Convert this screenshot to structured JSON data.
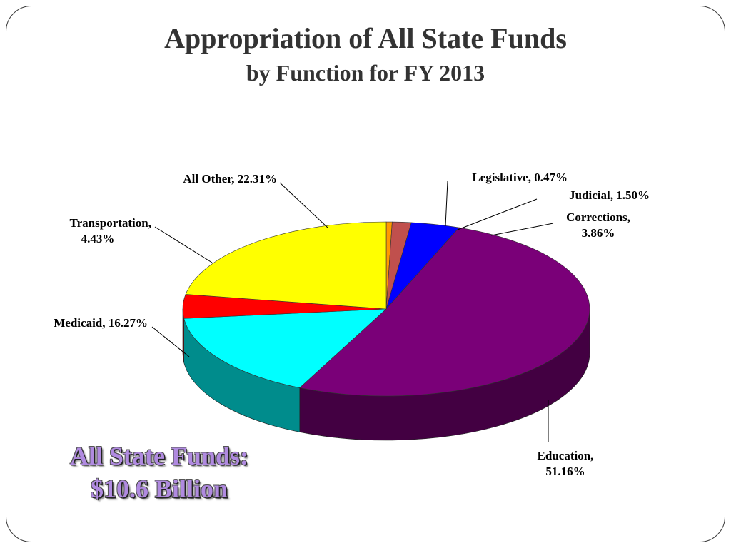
{
  "title": "Appropriation of All State Funds",
  "subtitle": "by Function for FY 2013",
  "summary": {
    "line1": "All State Funds:",
    "line2": "$10.6 Billion"
  },
  "chart_data": {
    "type": "pie",
    "three_d": true,
    "start_angle_deg": -90,
    "slices": [
      {
        "name": "Legislative",
        "value": 0.47,
        "label_line1": "Legislative, 0.47%",
        "label_line2": "",
        "color": "#ff9a00"
      },
      {
        "name": "Judicial",
        "value": 1.5,
        "label_line1": "Judicial,  1.50%",
        "label_line2": "",
        "color": "#c0504d"
      },
      {
        "name": "Corrections",
        "value": 3.86,
        "label_line1": "Corrections,",
        "label_line2": "3.86%",
        "color": "#0000ff"
      },
      {
        "name": "Education",
        "value": 51.16,
        "label_line1": "Education,",
        "label_line2": "51.16%",
        "color": "#7a0078"
      },
      {
        "name": "Medicaid",
        "value": 16.27,
        "label_line1": "Medicaid,  16.27%",
        "label_line2": "",
        "color": "#00ffff"
      },
      {
        "name": "Transportation",
        "value": 4.43,
        "label_line1": "Transportation,",
        "label_line2": "4.43%",
        "color": "#ff0000"
      },
      {
        "name": "All Other",
        "value": 22.31,
        "label_line1": "All Other,  22.31%",
        "label_line2": "",
        "color": "#ffff00"
      }
    ]
  }
}
